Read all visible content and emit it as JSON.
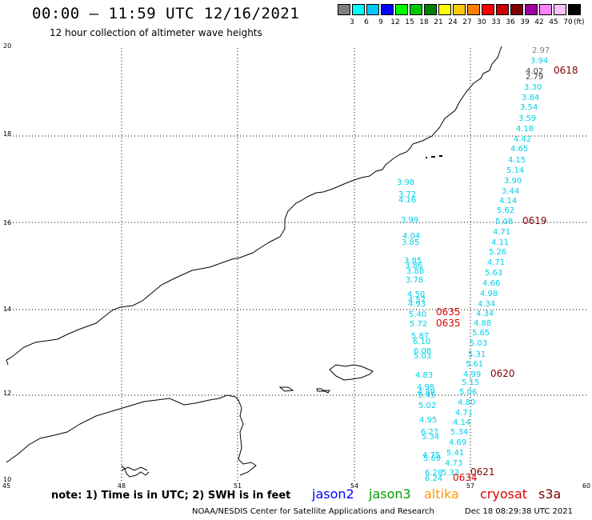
{
  "header": {
    "title": "00:00 – 11:59 UTC 12/16/2021",
    "subtitle": "12 hour collection of altimeter wave heights"
  },
  "legend": {
    "colors": [
      "#808080",
      "#00ffff",
      "#00c8ff",
      "#0000ff",
      "#00ff00",
      "#00c800",
      "#008000",
      "#ffff00",
      "#ffc800",
      "#ff8000",
      "#ff0000",
      "#c80000",
      "#800000",
      "#a000a0",
      "#ff80ff",
      "#ffc0ff",
      "#000000"
    ],
    "ticks": [
      "3",
      "6",
      "9",
      "12",
      "15",
      "18",
      "21",
      "24",
      "27",
      "30",
      "33",
      "36",
      "39",
      "42",
      "45",
      "70"
    ],
    "unit": "(ft)"
  },
  "axes": {
    "lon_labels": [
      "45",
      "48",
      "51",
      "54",
      "57",
      "60"
    ],
    "lat_labels": [
      "20",
      "18",
      "16",
      "14",
      "12",
      "10"
    ]
  },
  "track_times": [
    {
      "text": "0618",
      "style": "dark"
    },
    {
      "text": "0619",
      "style": "dark"
    },
    {
      "text": "0620",
      "style": "dark"
    },
    {
      "text": "0621",
      "style": "dark"
    },
    {
      "text": "0635",
      "style": "red"
    },
    {
      "text": "0635",
      "style": "red"
    },
    {
      "text": "0634",
      "style": "red"
    }
  ],
  "tracks": [
    {
      "name": "east",
      "values": [
        "2.97",
        "3.94",
        "4.02",
        "2.79",
        "3.30",
        "3.84",
        "3.54",
        "3.59",
        "4.18",
        "4.42",
        "4.65",
        "4.15",
        "5.14",
        "3.90",
        "3.44",
        "4.14",
        "5.62",
        "5.08",
        "4.71",
        "4.11",
        "5.26",
        "4.71",
        "5.63",
        "4.66",
        "4.98",
        "4.34",
        "4.34",
        "4.88",
        "5.65",
        "5.03",
        "5.31",
        "5.61",
        "4.99",
        "5.15",
        "5.06",
        "4.80",
        "4.71",
        "4.14",
        "5.34",
        "4.69",
        "5.41",
        "4.73",
        "5.33"
      ]
    },
    {
      "name": "west",
      "values": [
        "3.98",
        "3.72",
        "4.16",
        "3.99",
        "3.85",
        "4.04",
        "3.85",
        "3.86",
        "3.88",
        "3.78",
        "4.50",
        "4.57",
        "4.93",
        "5.40",
        "5.72",
        "5.87",
        "6.10",
        "6.08",
        "5.03",
        "4.83",
        "4.98",
        "4.89",
        "5.45",
        "5.02",
        "4.95",
        "6.27",
        "5.34",
        "4.75",
        "5.69",
        "6.28",
        "6.24"
      ]
    }
  ],
  "footer": {
    "note": "note:  1) Time is in UTC; 2) SWH is in feet",
    "satellites": [
      {
        "name": "jason2",
        "color": "#0000ff"
      },
      {
        "name": "jason3",
        "color": "#00a000"
      },
      {
        "name": "altika",
        "color": "#ff9900"
      },
      {
        "name": "cryosat",
        "color": "#e00000"
      },
      {
        "name": "s3a",
        "color": "#800000"
      }
    ],
    "source": "NOAA/NESDIS Center for Satellite Applications and Research",
    "timestamp": "Dec 18 08:29:38 UTC 2021"
  }
}
